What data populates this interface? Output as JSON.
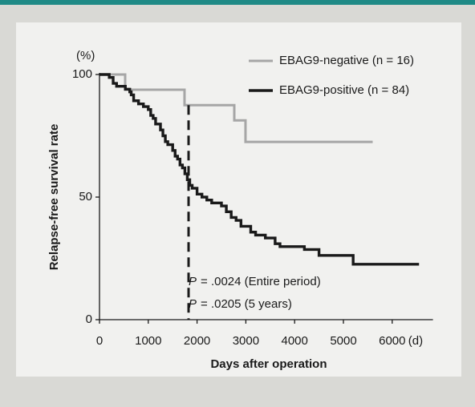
{
  "chart_data": {
    "type": "step",
    "y_label": "Relapse-free survival rate",
    "y_unit": "(%)",
    "x_label": "Days after operation",
    "x_unit": "(d)",
    "xlim": [
      0,
      7000
    ],
    "ylim": [
      0,
      100
    ],
    "xticks": [
      0,
      1000,
      2000,
      3000,
      4000,
      5000,
      6000
    ],
    "yticks": [
      0,
      50,
      100
    ],
    "legend": "top-right",
    "series": [
      {
        "name": "EBAG9-negative (n = 16)",
        "color": "#a6a6a6",
        "x": [
          0,
          526,
          1743,
          2763,
          2993,
          5600
        ],
        "values": [
          100,
          93.8,
          87.5,
          81.3,
          72.5,
          72.5
        ]
      },
      {
        "name": "EBAG9-positive (n = 84)",
        "color": "#1a1a1a",
        "x": [
          0,
          200,
          280,
          350,
          530,
          620,
          650,
          700,
          800,
          900,
          1000,
          1050,
          1100,
          1150,
          1250,
          1300,
          1350,
          1400,
          1500,
          1550,
          1600,
          1650,
          1700,
          1750,
          1800,
          1850,
          1900,
          2000,
          2100,
          2200,
          2300,
          2500,
          2600,
          2700,
          2800,
          2900,
          3100,
          3200,
          3400,
          3600,
          3700,
          4200,
          4500,
          5200,
          6550
        ],
        "values": [
          100,
          98.8,
          96.4,
          95.2,
          94,
          92.9,
          91.7,
          89.3,
          88,
          86.9,
          85.7,
          83.3,
          82.1,
          79.8,
          77.4,
          75,
          72.6,
          71.4,
          69,
          66.7,
          65.5,
          63.1,
          61.9,
          59.5,
          57.1,
          54.8,
          53.6,
          51.2,
          50,
          48.8,
          47.6,
          46.4,
          44,
          41.7,
          40.5,
          38.1,
          35.7,
          34.5,
          33.3,
          31,
          29.8,
          28.6,
          26.2,
          22.6,
          22.6
        ]
      }
    ],
    "reference_line": {
      "x": 1826
    },
    "annotations": [
      {
        "italic": "P",
        "text": "= .0024 (Entire period)"
      },
      {
        "italic": "P",
        "text": "= .0205 (5 years)"
      }
    ]
  }
}
